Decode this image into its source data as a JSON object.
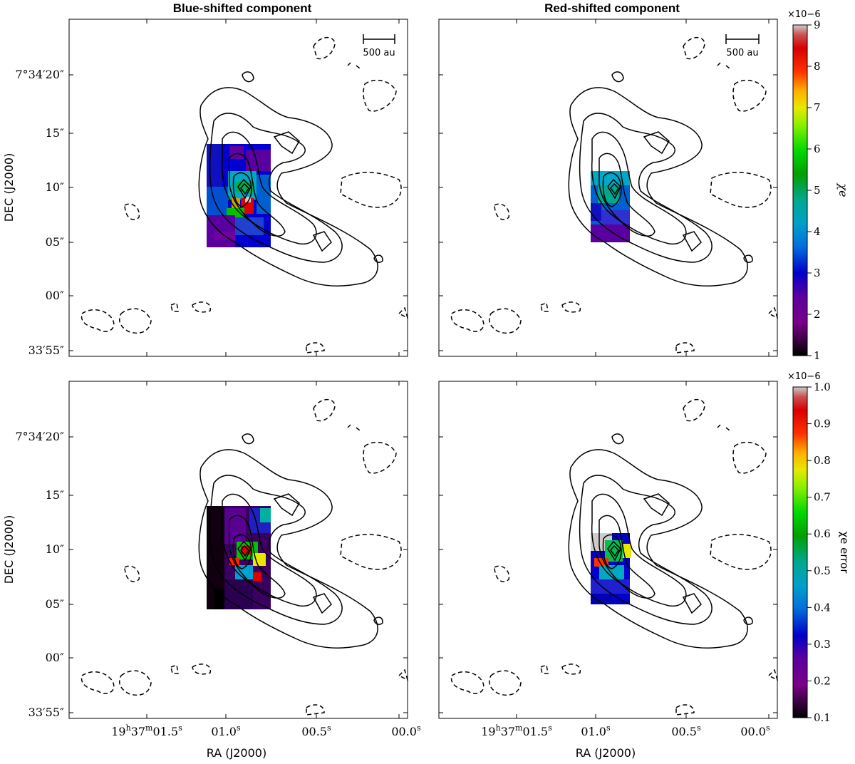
{
  "figure": {
    "titles": [
      "Blue-shifted component",
      "Red-shifted component"
    ],
    "ra_label": "RA (J2000)",
    "dec_label": "DEC (J2000)",
    "ra_ticks": [
      {
        "label": "19h37m01.5s",
        "h": "19",
        "m": "37",
        "s": "01.5"
      },
      {
        "label": "01.0s",
        "s": "01.0"
      },
      {
        "label": "00.5s",
        "s": "00.5"
      },
      {
        "label": "00.0s",
        "s": "00.0"
      }
    ],
    "dec_ticks": [
      "7°34′20″",
      "15″",
      "10″",
      "05″",
      "00″",
      "33′55″"
    ],
    "scalebar_label": "500 au",
    "top_colorbar": {
      "label": "χe",
      "multiplier": "×10−6",
      "ticks": [
        "1",
        "2",
        "3",
        "4",
        "5",
        "6",
        "7",
        "8",
        "9"
      ],
      "range": [
        1,
        9
      ]
    },
    "bottom_colorbar": {
      "label": "χe error",
      "multiplier": "×10−6",
      "ticks": [
        "0.1",
        "0.2",
        "0.3",
        "0.4",
        "0.5",
        "0.6",
        "0.7",
        "0.8",
        "0.9",
        "1.0"
      ],
      "range": [
        0.1,
        1.0
      ]
    },
    "colormap": "nipy_spectral",
    "contours": {
      "solid": "positive emission levels",
      "dashed": "negative emission levels"
    }
  }
}
